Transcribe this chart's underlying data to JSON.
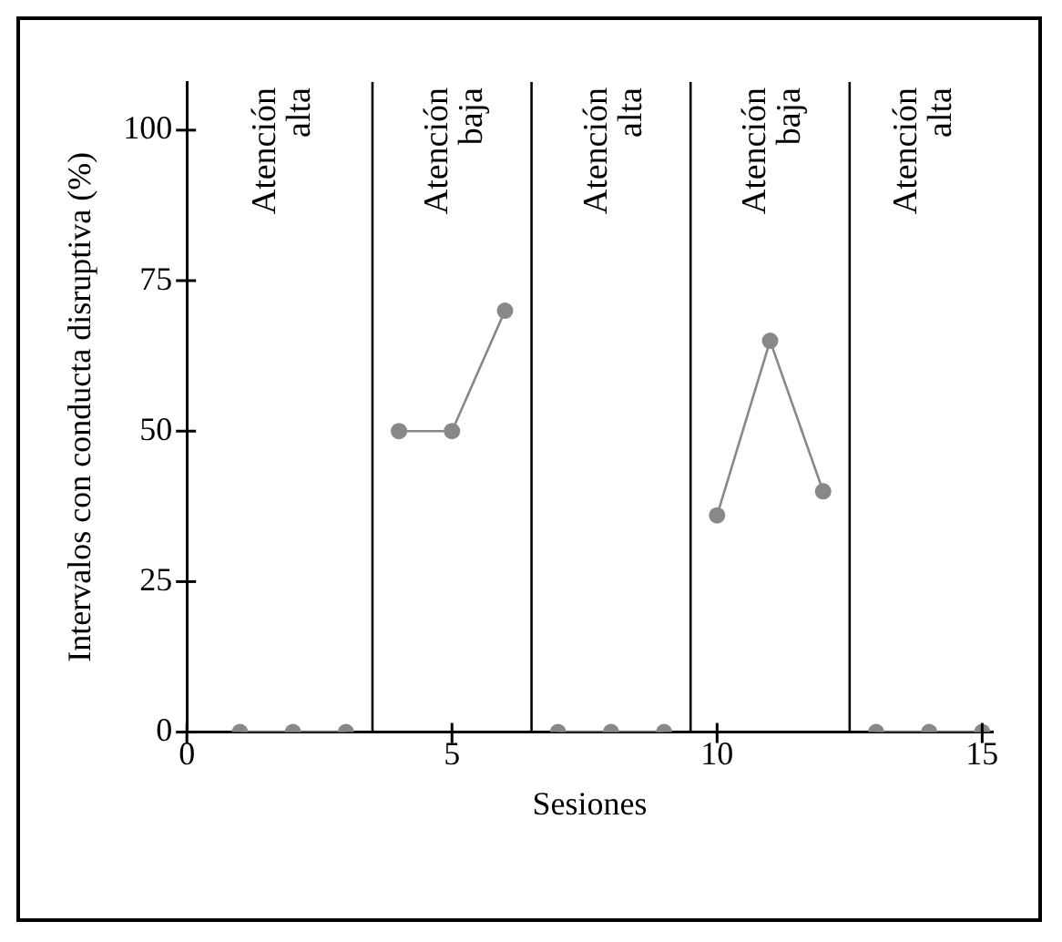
{
  "chart_data": {
    "type": "line",
    "xlabel": "Sesiones",
    "ylabel": "Intervalos con conducta disruptiva (%)",
    "xlim": [
      0,
      15.2
    ],
    "xticks": [
      0,
      5,
      10,
      15
    ],
    "ylim": [
      0,
      108
    ],
    "yticks": [
      0,
      25,
      50,
      75,
      100
    ],
    "grid": false,
    "legend": false,
    "marker": "circle",
    "line_style": "solid",
    "series": [
      {
        "color": "#888888",
        "x": [
          1,
          2,
          3
        ],
        "values": [
          0,
          0,
          0
        ]
      },
      {
        "color": "#888888",
        "x": [
          4,
          5,
          6
        ],
        "values": [
          50,
          50,
          70
        ]
      },
      {
        "color": "#888888",
        "x": [
          7,
          8,
          9
        ],
        "values": [
          0,
          0,
          0
        ]
      },
      {
        "color": "#888888",
        "x": [
          10,
          11,
          12
        ],
        "values": [
          36,
          65,
          40
        ]
      },
      {
        "color": "#888888",
        "x": [
          13,
          14,
          15
        ],
        "values": [
          0,
          0,
          0
        ]
      }
    ],
    "ref_lines": [
      {
        "axis": "x",
        "value": 3.5,
        "color": "#000000"
      },
      {
        "axis": "x",
        "value": 6.5,
        "color": "#000000"
      },
      {
        "axis": "x",
        "value": 9.5,
        "color": "#000000"
      },
      {
        "axis": "x",
        "value": 12.5,
        "color": "#000000"
      }
    ],
    "annotations": [
      "Atención alta",
      "Atención baja",
      "Atención alta",
      "Atención baja",
      "Atención alta"
    ]
  }
}
